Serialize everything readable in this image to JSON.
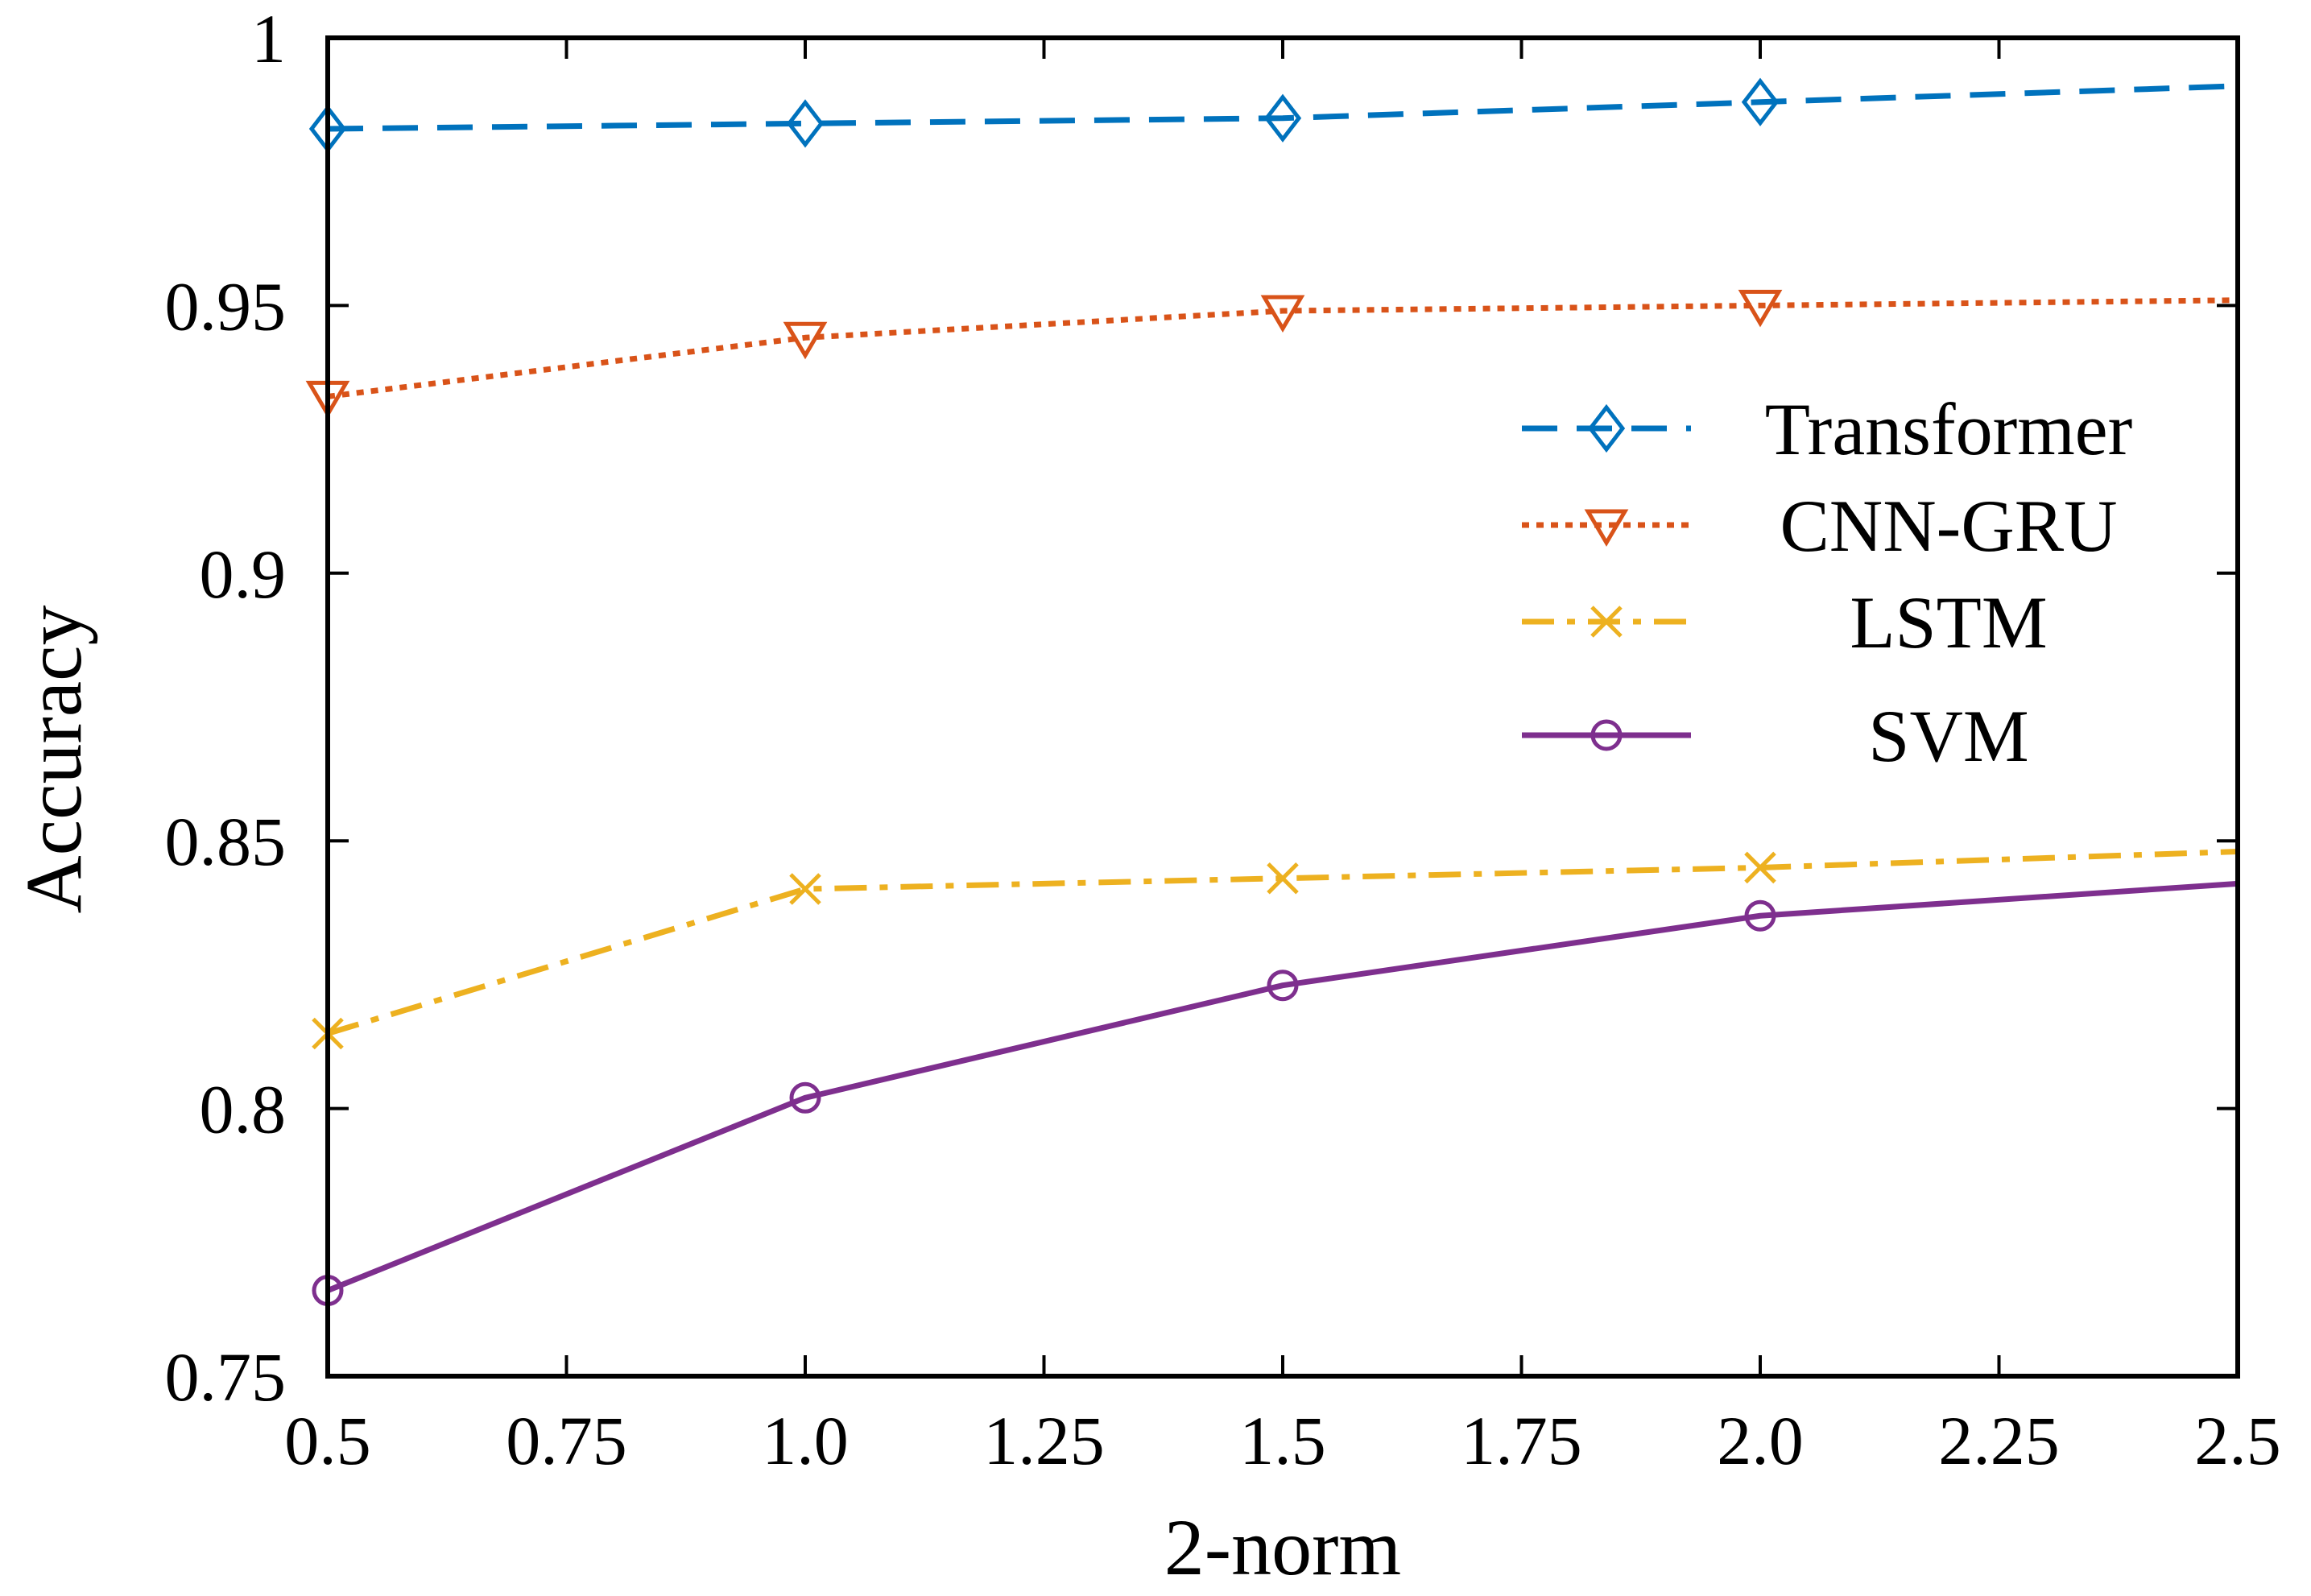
{
  "chart_data": {
    "type": "line",
    "xlabel": "2-norm",
    "ylabel": "Accuracy",
    "xlim": [
      0.5,
      2.5
    ],
    "ylim": [
      0.75,
      1.0
    ],
    "x_ticks": [
      {
        "value": 0.5,
        "label": "0.5"
      },
      {
        "value": 0.75,
        "label": "0.75"
      },
      {
        "value": 1.0,
        "label": "1.0"
      },
      {
        "value": 1.25,
        "label": "1.25"
      },
      {
        "value": 1.5,
        "label": "1.5"
      },
      {
        "value": 1.75,
        "label": "1.75"
      },
      {
        "value": 2.0,
        "label": "2.0"
      },
      {
        "value": 2.25,
        "label": "2.25"
      },
      {
        "value": 2.5,
        "label": "2.5"
      }
    ],
    "y_ticks": [
      {
        "value": 0.75,
        "label": "0.75"
      },
      {
        "value": 0.8,
        "label": "0.8"
      },
      {
        "value": 0.85,
        "label": "0.85"
      },
      {
        "value": 0.9,
        "label": "0.9"
      },
      {
        "value": 0.95,
        "label": "0.95"
      },
      {
        "value": 1.0,
        "label": "1"
      }
    ],
    "grid": false,
    "legend_position": "right",
    "series": [
      {
        "name": "Transformer",
        "color": "#0072BD",
        "line_style": "dashed",
        "marker": "diamond",
        "x": [
          0.5,
          1.0,
          1.5,
          2.0,
          2.5
        ],
        "y": [
          0.983,
          0.984,
          0.985,
          0.988,
          0.991
        ]
      },
      {
        "name": "CNN-GRU",
        "color": "#D95319",
        "line_style": "dotted",
        "marker": "triangle-down",
        "x": [
          0.5,
          1.0,
          1.5,
          2.0,
          2.5
        ],
        "y": [
          0.933,
          0.944,
          0.949,
          0.95,
          0.951
        ]
      },
      {
        "name": "LSTM",
        "color": "#EDB120",
        "line_style": "dash-dot",
        "marker": "x",
        "x": [
          0.5,
          1.0,
          1.5,
          2.0,
          2.5
        ],
        "y": [
          0.814,
          0.841,
          0.843,
          0.845,
          0.848
        ]
      },
      {
        "name": "SVM",
        "color": "#7E2F8E",
        "line_style": "solid",
        "marker": "circle",
        "x": [
          0.5,
          1.0,
          1.5,
          2.0,
          2.5
        ],
        "y": [
          0.766,
          0.802,
          0.823,
          0.836,
          0.842
        ]
      }
    ]
  }
}
